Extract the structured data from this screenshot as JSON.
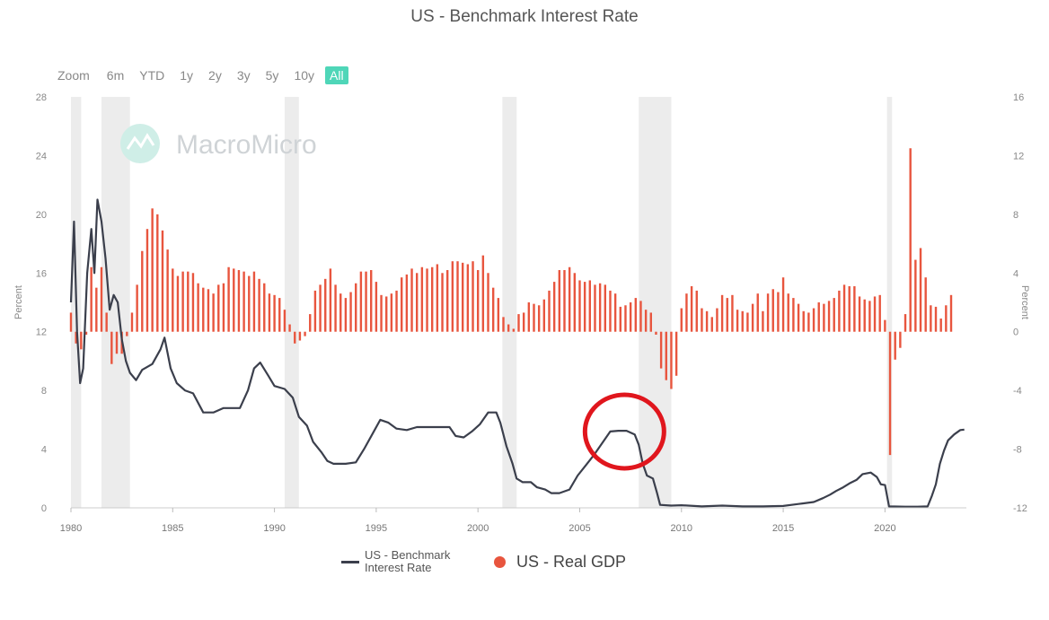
{
  "chart_data": {
    "type": "line+bar",
    "title": "US - Benchmark Interest Rate",
    "watermark": "MacroMicro",
    "zoom": {
      "label": "Zoom",
      "buttons": [
        "6m",
        "YTD",
        "1y",
        "2y",
        "3y",
        "5y",
        "10y",
        "All"
      ],
      "active": "All"
    },
    "x_range": [
      1980,
      2024
    ],
    "x_ticks": [
      1980,
      1985,
      1990,
      1995,
      2000,
      2005,
      2010,
      2015,
      2020
    ],
    "y_left": {
      "label": "Percent",
      "range": [
        0,
        28
      ],
      "ticks": [
        0,
        4,
        8,
        12,
        16,
        20,
        24,
        28
      ]
    },
    "y_right": {
      "label": "Percent",
      "range": [
        -12,
        16
      ],
      "ticks": [
        -12,
        -8,
        -4,
        0,
        4,
        8,
        12,
        16
      ]
    },
    "recessions": [
      [
        1980.0,
        1980.5
      ],
      [
        1981.5,
        1982.9
      ],
      [
        1990.5,
        1991.2
      ],
      [
        2001.2,
        2001.9
      ],
      [
        2007.9,
        2009.5
      ],
      [
        2020.1,
        2020.35
      ]
    ],
    "series": [
      {
        "name": "US - Benchmark Interest Rate",
        "axis": "left",
        "color": "#3b3f4c",
        "points": [
          [
            1980.0,
            14
          ],
          [
            1980.15,
            19.5
          ],
          [
            1980.3,
            12
          ],
          [
            1980.45,
            8.5
          ],
          [
            1980.6,
            9.5
          ],
          [
            1980.8,
            16
          ],
          [
            1981.0,
            19
          ],
          [
            1981.15,
            16
          ],
          [
            1981.3,
            21
          ],
          [
            1981.5,
            19.5
          ],
          [
            1981.7,
            17
          ],
          [
            1981.9,
            13.5
          ],
          [
            1982.1,
            14.5
          ],
          [
            1982.3,
            14
          ],
          [
            1982.5,
            11.5
          ],
          [
            1982.7,
            10
          ],
          [
            1982.9,
            9.2
          ],
          [
            1983.2,
            8.7
          ],
          [
            1983.5,
            9.4
          ],
          [
            1984.0,
            9.8
          ],
          [
            1984.4,
            10.8
          ],
          [
            1984.6,
            11.6
          ],
          [
            1984.9,
            9.5
          ],
          [
            1985.2,
            8.5
          ],
          [
            1985.6,
            8
          ],
          [
            1986.0,
            7.8
          ],
          [
            1986.5,
            6.5
          ],
          [
            1987.0,
            6.5
          ],
          [
            1987.5,
            6.8
          ],
          [
            1987.9,
            6.8
          ],
          [
            1988.3,
            6.8
          ],
          [
            1988.7,
            8
          ],
          [
            1989.0,
            9.5
          ],
          [
            1989.3,
            9.9
          ],
          [
            1989.7,
            9
          ],
          [
            1990.0,
            8.3
          ],
          [
            1990.5,
            8.1
          ],
          [
            1990.9,
            7.5
          ],
          [
            1991.2,
            6.2
          ],
          [
            1991.6,
            5.6
          ],
          [
            1991.9,
            4.5
          ],
          [
            1992.3,
            3.8
          ],
          [
            1992.6,
            3.2
          ],
          [
            1992.9,
            3
          ],
          [
            1993.5,
            3
          ],
          [
            1994.0,
            3.1
          ],
          [
            1994.4,
            4
          ],
          [
            1994.8,
            5
          ],
          [
            1995.2,
            6
          ],
          [
            1995.6,
            5.8
          ],
          [
            1996.0,
            5.4
          ],
          [
            1996.5,
            5.3
          ],
          [
            1997.0,
            5.5
          ],
          [
            1997.5,
            5.5
          ],
          [
            1998.0,
            5.5
          ],
          [
            1998.6,
            5.5
          ],
          [
            1998.9,
            4.9
          ],
          [
            1999.3,
            4.8
          ],
          [
            1999.7,
            5.2
          ],
          [
            2000.1,
            5.7
          ],
          [
            2000.5,
            6.5
          ],
          [
            2000.9,
            6.5
          ],
          [
            2001.1,
            5.8
          ],
          [
            2001.4,
            4.2
          ],
          [
            2001.7,
            3
          ],
          [
            2001.9,
            2
          ],
          [
            2002.2,
            1.75
          ],
          [
            2002.6,
            1.75
          ],
          [
            2002.9,
            1.4
          ],
          [
            2003.3,
            1.25
          ],
          [
            2003.6,
            1
          ],
          [
            2004.0,
            1
          ],
          [
            2004.5,
            1.25
          ],
          [
            2004.9,
            2.2
          ],
          [
            2005.3,
            2.9
          ],
          [
            2005.7,
            3.6
          ],
          [
            2006.1,
            4.4
          ],
          [
            2006.5,
            5.2
          ],
          [
            2006.9,
            5.25
          ],
          [
            2007.3,
            5.25
          ],
          [
            2007.7,
            5
          ],
          [
            2007.9,
            4.3
          ],
          [
            2008.1,
            3
          ],
          [
            2008.3,
            2.2
          ],
          [
            2008.6,
            2
          ],
          [
            2008.8,
            1
          ],
          [
            2008.95,
            0.2
          ],
          [
            2009.5,
            0.15
          ],
          [
            2010,
            0.18
          ],
          [
            2011,
            0.1
          ],
          [
            2012,
            0.15
          ],
          [
            2013,
            0.1
          ],
          [
            2014,
            0.1
          ],
          [
            2015,
            0.13
          ],
          [
            2015.95,
            0.3
          ],
          [
            2016.5,
            0.4
          ],
          [
            2016.95,
            0.66
          ],
          [
            2017.3,
            0.9
          ],
          [
            2017.6,
            1.15
          ],
          [
            2017.95,
            1.4
          ],
          [
            2018.3,
            1.7
          ],
          [
            2018.6,
            1.9
          ],
          [
            2018.9,
            2.3
          ],
          [
            2019.3,
            2.4
          ],
          [
            2019.6,
            2.1
          ],
          [
            2019.8,
            1.6
          ],
          [
            2020.0,
            1.55
          ],
          [
            2020.2,
            0.1
          ],
          [
            2021.0,
            0.08
          ],
          [
            2021.6,
            0.08
          ],
          [
            2022.1,
            0.1
          ],
          [
            2022.3,
            0.8
          ],
          [
            2022.5,
            1.6
          ],
          [
            2022.7,
            3
          ],
          [
            2022.9,
            3.9
          ],
          [
            2023.1,
            4.6
          ],
          [
            2023.4,
            5.0
          ],
          [
            2023.7,
            5.3
          ],
          [
            2023.9,
            5.33
          ]
        ]
      },
      {
        "name": "US - Real GDP",
        "axis": "right",
        "color": "#e8553e",
        "points": [
          [
            1980.0,
            1.3
          ],
          [
            1980.25,
            -0.8
          ],
          [
            1980.5,
            -1.2
          ],
          [
            1980.75,
            -0.2
          ],
          [
            1981.0,
            4.4
          ],
          [
            1981.25,
            3
          ],
          [
            1981.5,
            4.4
          ],
          [
            1981.75,
            1.3
          ],
          [
            1982.0,
            -2.2
          ],
          [
            1982.25,
            -1.5
          ],
          [
            1982.5,
            -1.5
          ],
          [
            1982.75,
            -0.3
          ],
          [
            1983.0,
            1.3
          ],
          [
            1983.25,
            3.2
          ],
          [
            1983.5,
            5.5
          ],
          [
            1983.75,
            7
          ],
          [
            1984.0,
            8.4
          ],
          [
            1984.25,
            8
          ],
          [
            1984.5,
            6.9
          ],
          [
            1984.75,
            5.6
          ],
          [
            1985.0,
            4.3
          ],
          [
            1985.25,
            3.8
          ],
          [
            1985.5,
            4.1
          ],
          [
            1985.75,
            4.1
          ],
          [
            1986.0,
            4
          ],
          [
            1986.25,
            3.3
          ],
          [
            1986.5,
            3
          ],
          [
            1986.75,
            2.9
          ],
          [
            1987.0,
            2.6
          ],
          [
            1987.25,
            3.2
          ],
          [
            1987.5,
            3.3
          ],
          [
            1987.75,
            4.4
          ],
          [
            1988.0,
            4.3
          ],
          [
            1988.25,
            4.2
          ],
          [
            1988.5,
            4.1
          ],
          [
            1988.75,
            3.8
          ],
          [
            1989.0,
            4.1
          ],
          [
            1989.25,
            3.6
          ],
          [
            1989.5,
            3.3
          ],
          [
            1989.75,
            2.6
          ],
          [
            1990.0,
            2.5
          ],
          [
            1990.25,
            2.3
          ],
          [
            1990.5,
            1.5
          ],
          [
            1990.75,
            0.5
          ],
          [
            1991.0,
            -0.8
          ],
          [
            1991.25,
            -0.6
          ],
          [
            1991.5,
            -0.3
          ],
          [
            1991.75,
            1.2
          ],
          [
            1992.0,
            2.8
          ],
          [
            1992.25,
            3.2
          ],
          [
            1992.5,
            3.6
          ],
          [
            1992.75,
            4.3
          ],
          [
            1993.0,
            3.2
          ],
          [
            1993.25,
            2.6
          ],
          [
            1993.5,
            2.3
          ],
          [
            1993.75,
            2.7
          ],
          [
            1994.0,
            3.3
          ],
          [
            1994.25,
            4.1
          ],
          [
            1994.5,
            4.1
          ],
          [
            1994.75,
            4.2
          ],
          [
            1995.0,
            3.4
          ],
          [
            1995.25,
            2.5
          ],
          [
            1995.5,
            2.4
          ],
          [
            1995.75,
            2.6
          ],
          [
            1996.0,
            2.8
          ],
          [
            1996.25,
            3.7
          ],
          [
            1996.5,
            3.9
          ],
          [
            1996.75,
            4.3
          ],
          [
            1997.0,
            4
          ],
          [
            1997.25,
            4.4
          ],
          [
            1997.5,
            4.3
          ],
          [
            1997.75,
            4.4
          ],
          [
            1998.0,
            4.6
          ],
          [
            1998.25,
            4
          ],
          [
            1998.5,
            4.2
          ],
          [
            1998.75,
            4.8
          ],
          [
            1999.0,
            4.8
          ],
          [
            1999.25,
            4.7
          ],
          [
            1999.5,
            4.6
          ],
          [
            1999.75,
            4.8
          ],
          [
            2000.0,
            4.2
          ],
          [
            2000.25,
            5.2
          ],
          [
            2000.5,
            4
          ],
          [
            2000.75,
            3
          ],
          [
            2001.0,
            2.3
          ],
          [
            2001.25,
            1
          ],
          [
            2001.5,
            0.5
          ],
          [
            2001.75,
            0.2
          ],
          [
            2002.0,
            1.2
          ],
          [
            2002.25,
            1.3
          ],
          [
            2002.5,
            2
          ],
          [
            2002.75,
            1.9
          ],
          [
            2003.0,
            1.8
          ],
          [
            2003.25,
            2.2
          ],
          [
            2003.5,
            2.8
          ],
          [
            2003.75,
            3.4
          ],
          [
            2004.0,
            4.2
          ],
          [
            2004.25,
            4.2
          ],
          [
            2004.5,
            4.4
          ],
          [
            2004.75,
            4
          ],
          [
            2005.0,
            3.5
          ],
          [
            2005.25,
            3.4
          ],
          [
            2005.5,
            3.5
          ],
          [
            2005.75,
            3.2
          ],
          [
            2006.0,
            3.3
          ],
          [
            2006.25,
            3.2
          ],
          [
            2006.5,
            2.8
          ],
          [
            2006.75,
            2.6
          ],
          [
            2007.0,
            1.7
          ],
          [
            2007.25,
            1.8
          ],
          [
            2007.5,
            2
          ],
          [
            2007.75,
            2.3
          ],
          [
            2008.0,
            2.1
          ],
          [
            2008.25,
            1.5
          ],
          [
            2008.5,
            1.3
          ],
          [
            2008.75,
            -0.2
          ],
          [
            2009.0,
            -2.5
          ],
          [
            2009.25,
            -3.3
          ],
          [
            2009.5,
            -3.9
          ],
          [
            2009.75,
            -3
          ],
          [
            2010.0,
            1.6
          ],
          [
            2010.25,
            2.6
          ],
          [
            2010.5,
            3.1
          ],
          [
            2010.75,
            2.8
          ],
          [
            2011.0,
            1.6
          ],
          [
            2011.25,
            1.4
          ],
          [
            2011.5,
            1
          ],
          [
            2011.75,
            1.6
          ],
          [
            2012.0,
            2.5
          ],
          [
            2012.25,
            2.3
          ],
          [
            2012.5,
            2.5
          ],
          [
            2012.75,
            1.5
          ],
          [
            2013.0,
            1.4
          ],
          [
            2013.25,
            1.3
          ],
          [
            2013.5,
            1.9
          ],
          [
            2013.75,
            2.6
          ],
          [
            2014.0,
            1.4
          ],
          [
            2014.25,
            2.6
          ],
          [
            2014.5,
            2.9
          ],
          [
            2014.75,
            2.7
          ],
          [
            2015.0,
            3.7
          ],
          [
            2015.25,
            2.6
          ],
          [
            2015.5,
            2.3
          ],
          [
            2015.75,
            1.9
          ],
          [
            2016.0,
            1.4
          ],
          [
            2016.25,
            1.3
          ],
          [
            2016.5,
            1.6
          ],
          [
            2016.75,
            2
          ],
          [
            2017.0,
            1.9
          ],
          [
            2017.25,
            2.1
          ],
          [
            2017.5,
            2.3
          ],
          [
            2017.75,
            2.8
          ],
          [
            2018.0,
            3.2
          ],
          [
            2018.25,
            3.1
          ],
          [
            2018.5,
            3.1
          ],
          [
            2018.75,
            2.4
          ],
          [
            2019.0,
            2.2
          ],
          [
            2019.25,
            2.1
          ],
          [
            2019.5,
            2.4
          ],
          [
            2019.75,
            2.5
          ],
          [
            2020.0,
            0.8
          ],
          [
            2020.25,
            -8.4
          ],
          [
            2020.5,
            -1.9
          ],
          [
            2020.75,
            -1.1
          ],
          [
            2021.0,
            1.2
          ],
          [
            2021.25,
            12.5
          ],
          [
            2021.5,
            4.9
          ],
          [
            2021.75,
            5.7
          ],
          [
            2022.0,
            3.7
          ],
          [
            2022.25,
            1.8
          ],
          [
            2022.5,
            1.7
          ],
          [
            2022.75,
            0.9
          ],
          [
            2023.0,
            1.8
          ],
          [
            2023.25,
            2.5
          ]
        ]
      }
    ],
    "annotation": {
      "type": "circle",
      "color": "#e0161d",
      "center_x": 2007.2,
      "center_y_left": 5.2
    },
    "legend": {
      "position": "bottom",
      "entries": [
        "US - Benchmark Interest Rate",
        "US - Real GDP"
      ]
    }
  }
}
